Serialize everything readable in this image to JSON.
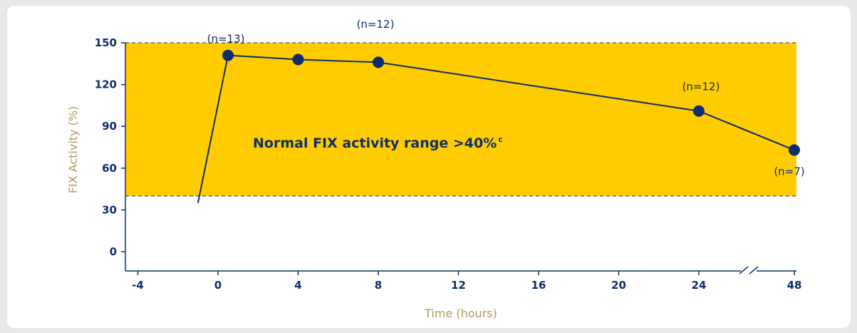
{
  "colors": {
    "band": "#ffcc00",
    "line": "#0d2d6c",
    "axis_title": "#b09a5c",
    "background": "#ffffff"
  },
  "chart_data": {
    "type": "line",
    "xlabel": "Time (hours)",
    "ylabel": "FIX Activity (%)",
    "x_ticks": [
      "-4",
      "0",
      "4",
      "8",
      "12",
      "16",
      "20",
      "24",
      "48"
    ],
    "y_ticks": [
      "0",
      "30",
      "60",
      "90",
      "120",
      "150"
    ],
    "ylim": [
      -10,
      150
    ],
    "x_axis_break": "between 24 and 48",
    "band": {
      "from": 40,
      "to": 150,
      "label": "Normal FIX activity range >40%",
      "label_sup": "c"
    },
    "series": [
      {
        "points": [
          {
            "x": -1,
            "y": 35,
            "marker": false
          },
          {
            "x": 0.5,
            "y": 141,
            "marker": true
          },
          {
            "x": 4,
            "y": 138,
            "marker": true
          },
          {
            "x": 8,
            "y": 136,
            "marker": true
          },
          {
            "x": 24,
            "y": 101,
            "marker": true
          },
          {
            "x": 48,
            "y": 73,
            "marker": true
          }
        ]
      }
    ],
    "annotations": [
      {
        "text": "(n=13)",
        "x": 0.5
      },
      {
        "text": "(n=12)",
        "x": 8
      },
      {
        "text": "(n=12)",
        "x": 24
      },
      {
        "text": "(n=7)",
        "x": 48
      }
    ]
  }
}
